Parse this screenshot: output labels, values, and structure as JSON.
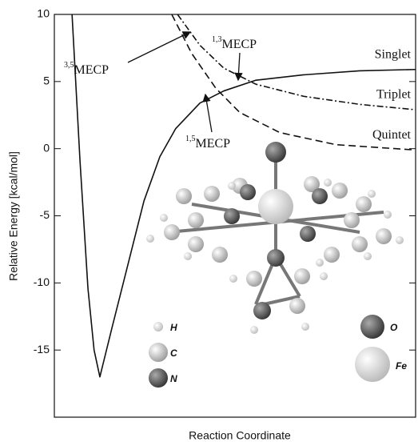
{
  "chart_data": {
    "type": "line",
    "x_label": "Reaction Coordinate",
    "y_label": "Relative Energy [kcal/mol]",
    "ylim": [
      -20,
      10
    ],
    "yticks": [
      -15,
      -10,
      -5,
      0,
      5,
      10
    ],
    "xlim": [
      0,
      10
    ],
    "series": [
      {
        "name": "Singlet",
        "color": "#111111",
        "dash": "solid",
        "x": [
          0.49,
          0.71,
          0.93,
          1.1,
          1.26,
          1.59,
          2.04,
          2.48,
          2.92,
          3.36,
          4.03,
          4.69,
          5.58,
          6.9,
          8.45,
          10
        ],
        "values": [
          10,
          -0.9,
          -10.4,
          -15,
          -17,
          -13.4,
          -8.6,
          -3.9,
          -0.6,
          1.5,
          3.4,
          4.3,
          5.1,
          5.5,
          5.8,
          5.9
        ]
      },
      {
        "name": "Triplet",
        "color": "#111111",
        "dash": "dashdot",
        "x": [
          3.41,
          4.03,
          4.69,
          5.58,
          6.9,
          8.45,
          10
        ],
        "values": [
          10,
          7.7,
          6,
          4.8,
          3.9,
          3.3,
          2.9
        ]
      },
      {
        "name": "Quintet",
        "color": "#111111",
        "dash": "dashed",
        "x": [
          3.25,
          3.8,
          4.47,
          5.13,
          6.24,
          7.79,
          10
        ],
        "values": [
          10,
          7.1,
          4.5,
          2.7,
          1.2,
          0.3,
          -0.1
        ]
      }
    ],
    "annotations": [
      {
        "sup": "3,5",
        "text": "MECP"
      },
      {
        "sup": "1,3",
        "text": "MECP"
      },
      {
        "sup": "1,5",
        "text": "MECP"
      }
    ],
    "atom_legend": [
      "H",
      "C",
      "N",
      "O",
      "Fe"
    ]
  }
}
